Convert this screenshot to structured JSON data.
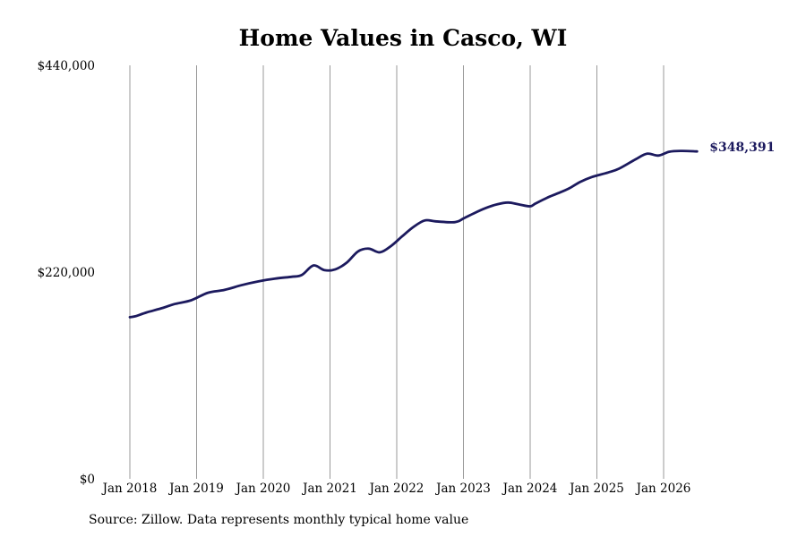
{
  "chart_data": {
    "type": "line",
    "title": "Home Values in Casco, WI",
    "xlabel": "",
    "ylabel": "",
    "ylim": [
      0,
      440000
    ],
    "y_ticks": [
      0,
      220000,
      440000
    ],
    "y_tick_labels": [
      "$0",
      "$220,000",
      "$440,000"
    ],
    "x_ticks": [
      2018,
      2019,
      2020,
      2021,
      2022,
      2023,
      2024,
      2025,
      2026
    ],
    "x_tick_labels": [
      "Jan 2018",
      "Jan 2019",
      "Jan 2020",
      "Jan 2021",
      "Jan 2022",
      "Jan 2023",
      "Jan 2024",
      "Jan 2025",
      "Jan 2026"
    ],
    "grid": "vertical",
    "line_color": "#1c1a5e",
    "end_label": "$348,391",
    "series": [
      {
        "x": [
          2018.0,
          2018.08,
          2018.25,
          2018.5,
          2018.67,
          2018.92,
          2019.17,
          2019.42,
          2019.67,
          2019.92,
          2020.17,
          2020.42,
          2020.58,
          2020.75,
          2020.92,
          2021.08,
          2021.25,
          2021.42,
          2021.58,
          2021.75,
          2021.92,
          2022.08,
          2022.25,
          2022.42,
          2022.58,
          2022.83,
          2022.92,
          2023.0,
          2023.17,
          2023.33,
          2023.5,
          2023.67,
          2023.83,
          2024.0,
          2024.08,
          2024.25,
          2024.42,
          2024.58,
          2024.75,
          2024.92,
          2025.17,
          2025.33,
          2025.58,
          2025.75,
          2025.92,
          2026.08,
          2026.25,
          2026.5
        ],
        "y": [
          172000,
          173000,
          177000,
          182000,
          186000,
          190000,
          198000,
          201000,
          206000,
          210000,
          213000,
          215000,
          217000,
          227000,
          222000,
          223000,
          230000,
          242000,
          245000,
          241000,
          248000,
          258000,
          268000,
          275000,
          274000,
          273000,
          274000,
          277000,
          283000,
          288000,
          292000,
          294000,
          292000,
          290000,
          293000,
          299000,
          304000,
          309000,
          316000,
          321000,
          326000,
          330000,
          340000,
          346000,
          344000,
          348000,
          349000,
          348391
        ]
      }
    ]
  },
  "footer": {
    "source": "Source: Zillow. Data represents monthly typical home value"
  }
}
